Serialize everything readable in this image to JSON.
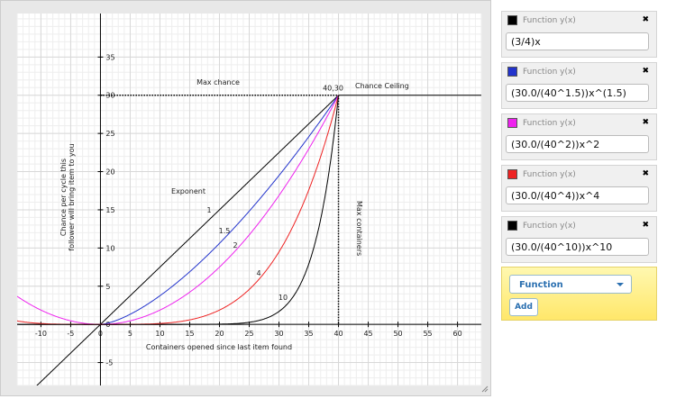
{
  "graph": {
    "xlim": [
      -14,
      64
    ],
    "ylim": [
      -8,
      40.7
    ],
    "xticks": [
      -10,
      -5,
      0,
      5,
      10,
      15,
      20,
      25,
      30,
      35,
      40,
      45,
      50,
      55,
      60
    ],
    "yticks": [
      -5,
      0,
      5,
      10,
      15,
      20,
      25,
      30,
      35
    ],
    "max_point": "40,30",
    "max_chance": "Max chance",
    "chance_ceiling": "Chance Ceiling",
    "max_containers": "Max containers",
    "exponent": "Exponent",
    "exponent_labels": [
      "1",
      "1.5",
      "2",
      "4",
      "10"
    ],
    "y_label": [
      "Chance per cycle this",
      "follower will bring item to you"
    ],
    "x_label": "Containers opened since last item found"
  },
  "functions": [
    {
      "label": "Function y(x)",
      "color": "#000000",
      "expression": "(3/4)x"
    },
    {
      "label": "Function y(x)",
      "color": "#2233cc",
      "expression": "(30.0/(40^1.5))x^(1.5)"
    },
    {
      "label": "Function y(x)",
      "color": "#ee22ee",
      "expression": "(30.0/(40^2))x^2"
    },
    {
      "label": "Function y(x)",
      "color": "#ee2222",
      "expression": "(30.0/(40^4))x^4"
    },
    {
      "label": "Function y(x)",
      "color": "#000000",
      "expression": "(30.0/(40^10))x^10"
    }
  ],
  "close_icon": "✖",
  "add_panel": {
    "select": "Function",
    "button": "Add"
  }
}
